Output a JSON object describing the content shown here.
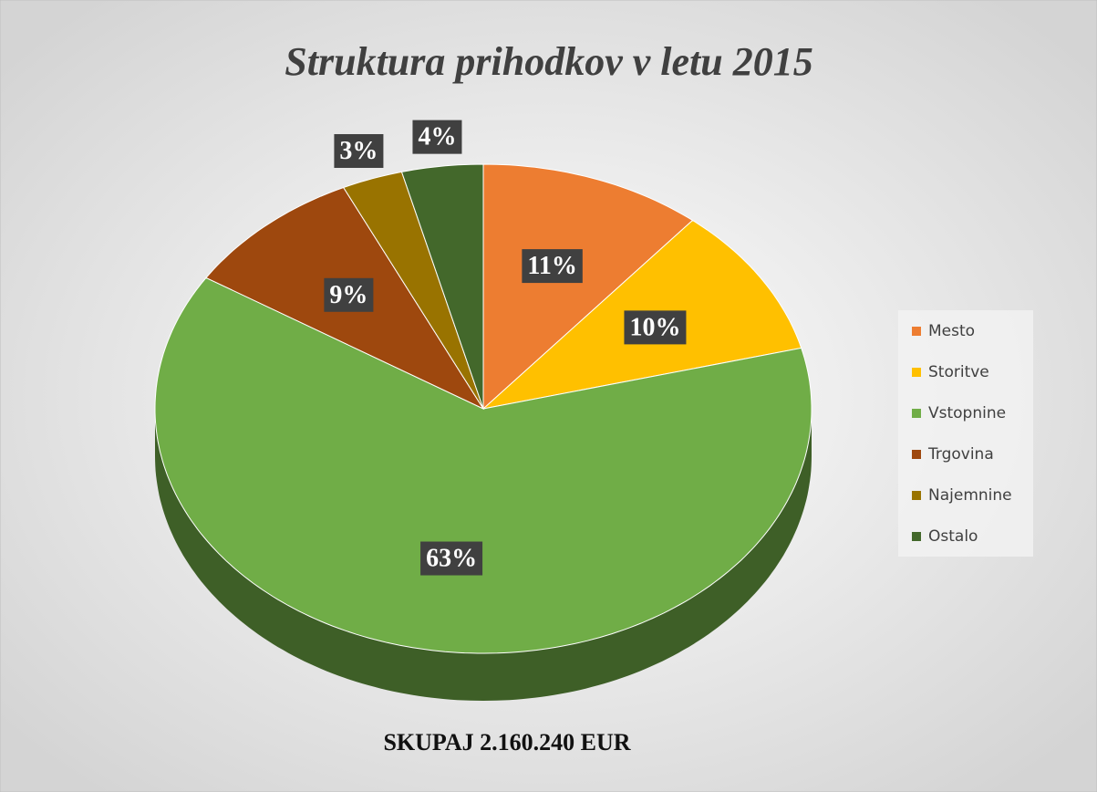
{
  "chart_data": {
    "type": "pie",
    "title": "Struktura prihodkov v letu 2015",
    "annotation": "SKUPAJ 2.160.240 EUR",
    "categories": [
      "Mesto",
      "Storitve",
      "Vstopnine",
      "Trgovina",
      "Najemnine",
      "Ostalo"
    ],
    "values": [
      11,
      10,
      63,
      9,
      3,
      4
    ],
    "value_labels": [
      "11%",
      "10%",
      "63%",
      "9%",
      "3%",
      "4%"
    ],
    "colors": [
      "#ed7d31",
      "#ffc000",
      "#70ad47",
      "#9e480e",
      "#997300",
      "#43682b"
    ],
    "legend": "right"
  }
}
